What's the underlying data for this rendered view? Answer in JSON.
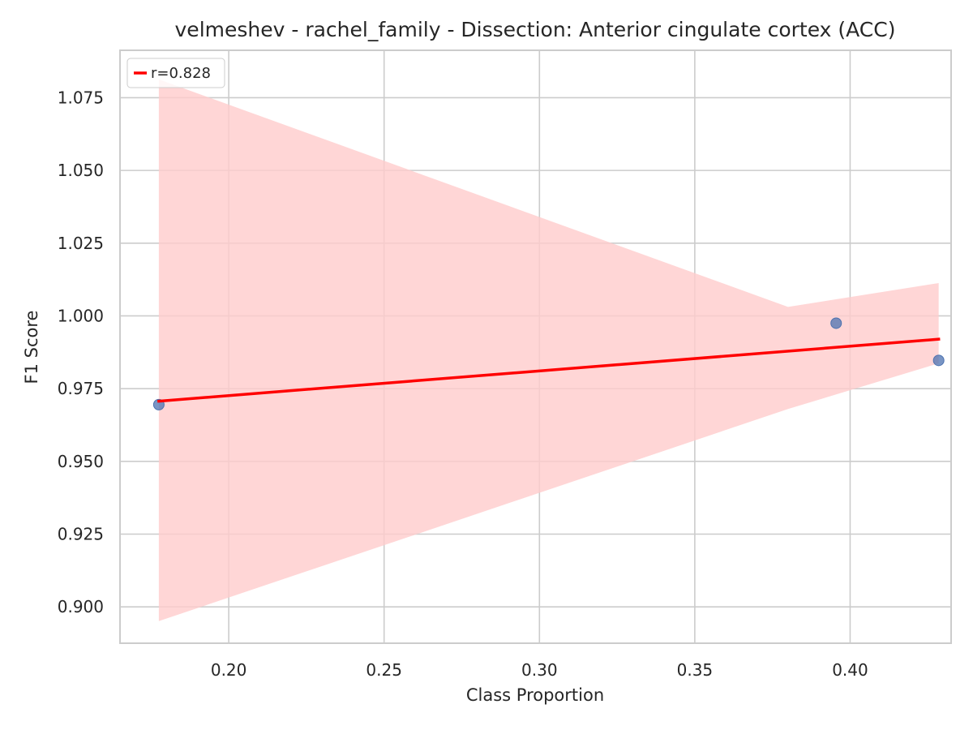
{
  "chart_data": {
    "type": "scatter",
    "title": "velmeshev - rachel_family - Dissection: Anterior cingulate cortex (ACC)",
    "xlabel": "Class Proportion",
    "ylabel": "F1 Score",
    "xlim": [
      0.165,
      0.4325
    ],
    "ylim": [
      0.8875,
      1.0913
    ],
    "xticks": [
      0.2,
      0.25,
      0.3,
      0.35,
      0.4
    ],
    "xtick_labels": [
      "0.20",
      "0.25",
      "0.30",
      "0.35",
      "0.40"
    ],
    "yticks": [
      0.9,
      0.925,
      0.95,
      0.975,
      1.0,
      1.025,
      1.05,
      1.075
    ],
    "ytick_labels": [
      "0.900",
      "0.925",
      "0.950",
      "0.975",
      "1.000",
      "1.025",
      "1.050",
      "1.075"
    ],
    "grid": true,
    "points": [
      {
        "x": 0.1775,
        "y": 0.9695
      },
      {
        "x": 0.3955,
        "y": 0.9975
      },
      {
        "x": 0.4285,
        "y": 0.9847
      }
    ],
    "regression_line": {
      "x": [
        0.1775,
        0.4285
      ],
      "y": [
        0.9707,
        0.992
      ]
    },
    "confidence_band": {
      "upper": [
        [
          0.1775,
          1.0813
        ],
        [
          0.38,
          1.0031
        ],
        [
          0.4285,
          1.0113
        ]
      ],
      "lower": [
        [
          0.1775,
          0.8951
        ],
        [
          0.38,
          0.968
        ],
        [
          0.4285,
          0.9837
        ]
      ]
    },
    "legend": {
      "placement": "top-left",
      "entries": [
        {
          "label": "r=0.828",
          "color": "#ff0000"
        }
      ]
    },
    "colors": {
      "points": "#4c72b0",
      "line": "#ff0000",
      "band": "#ffcccc",
      "grid": "#cccccc",
      "frame": "#cccccc"
    }
  }
}
